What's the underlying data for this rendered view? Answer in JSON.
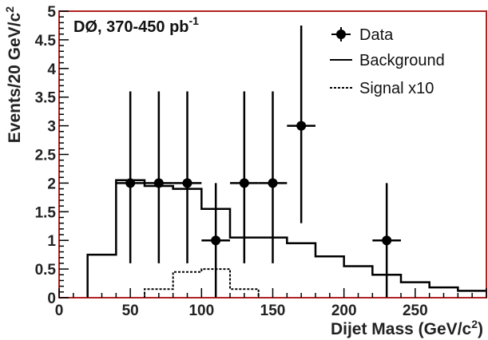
{
  "chart_data": {
    "type": "histogram",
    "annotation": "DØ, 370-450 pb",
    "annotation_sup": "-1",
    "xlabel": "Dijet Mass (GeV/c",
    "xlabel_sup": "2",
    "xlabel_end": ")",
    "ylabel": "Events/20 GeV/c",
    "ylabel_sup": "2",
    "xlim": [
      0,
      300
    ],
    "ylim": [
      0,
      5
    ],
    "x_ticks": [
      "0",
      "50",
      "100",
      "150",
      "200",
      "250"
    ],
    "y_ticks": [
      "0",
      "0.5",
      "1",
      "1.5",
      "2",
      "2.5",
      "3",
      "3.5",
      "4",
      "4.5",
      "5"
    ],
    "legend": {
      "position": "top-right",
      "entries": [
        {
          "label": "Data",
          "style": "marker"
        },
        {
          "label": "Background",
          "style": "solid"
        },
        {
          "label": "Signal x10",
          "style": "dashed"
        }
      ]
    },
    "series": [
      {
        "name": "Data",
        "kind": "points",
        "points": [
          {
            "x": 50,
            "y": 2,
            "xerr": 10,
            "ylo": 0.6,
            "yhi": 3.6
          },
          {
            "x": 70,
            "y": 2,
            "xerr": 10,
            "ylo": 0.6,
            "yhi": 3.6
          },
          {
            "x": 90,
            "y": 2,
            "xerr": 10,
            "ylo": 0.6,
            "yhi": 3.6
          },
          {
            "x": 110,
            "y": 1,
            "xerr": 10,
            "ylo": 0,
            "yhi": 2
          },
          {
            "x": 130,
            "y": 2,
            "xerr": 10,
            "ylo": 0.6,
            "yhi": 3.6
          },
          {
            "x": 150,
            "y": 2,
            "xerr": 10,
            "ylo": 0.6,
            "yhi": 3.6
          },
          {
            "x": 170,
            "y": 3,
            "xerr": 10,
            "ylo": 1.3,
            "yhi": 4.75
          },
          {
            "x": 230,
            "y": 1,
            "xerr": 10,
            "ylo": 0,
            "yhi": 2
          }
        ]
      },
      {
        "name": "Background",
        "kind": "step",
        "edges": [
          20,
          40,
          60,
          80,
          100,
          120,
          140,
          160,
          180,
          200,
          220,
          240,
          260,
          280,
          300
        ],
        "values": [
          0.75,
          2.05,
          1.95,
          1.9,
          1.55,
          1.05,
          1.05,
          0.95,
          0.72,
          0.55,
          0.4,
          0.27,
          0.18,
          0.12
        ]
      },
      {
        "name": "Signal x10",
        "kind": "step",
        "edges": [
          40,
          60,
          80,
          100,
          120,
          140
        ],
        "values": [
          0,
          0.15,
          0.45,
          0.5,
          0.15
        ]
      }
    ]
  },
  "colors": {
    "frame": "#b22222",
    "ink": "#000000"
  }
}
